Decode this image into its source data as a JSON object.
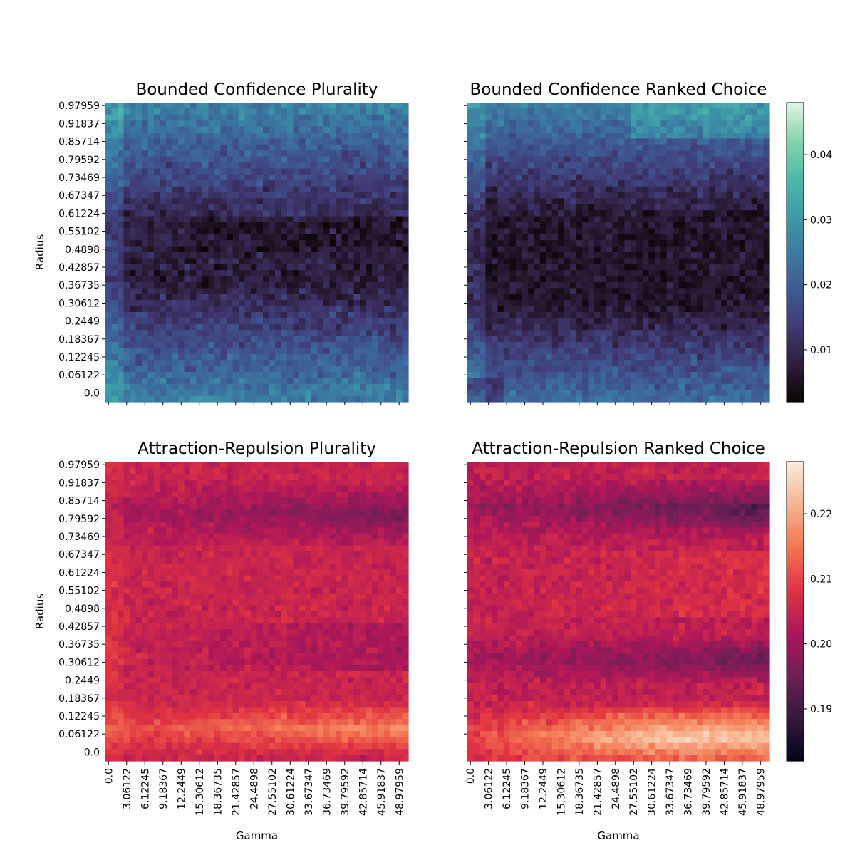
{
  "chart_data": [
    {
      "type": "heatmap",
      "title": "Bounded Confidence Plurality",
      "xlabel": "",
      "ylabel": "Radius",
      "colormap": "mako",
      "colorbar_group": "bounded",
      "pattern": "bc_plurality"
    },
    {
      "type": "heatmap",
      "title": "Bounded Confidence Ranked Choice",
      "xlabel": "",
      "ylabel": "",
      "colormap": "mako",
      "colorbar_group": "bounded",
      "pattern": "bc_ranked"
    },
    {
      "type": "heatmap",
      "title": "Attraction-Repulsion Plurality",
      "xlabel": "Gamma",
      "ylabel": "Radius",
      "colormap": "rocket",
      "colorbar_group": "attraction",
      "pattern": "ar_plurality"
    },
    {
      "type": "heatmap",
      "title": "Attraction-Repulsion Ranked Choice",
      "xlabel": "Gamma",
      "ylabel": "",
      "colormap": "rocket",
      "colorbar_group": "attraction",
      "pattern": "ar_ranked"
    }
  ],
  "grid": {
    "rows": 50,
    "cols": 50
  },
  "y_tick_labels": [
    "0.97959",
    "0.91837",
    "0.85714",
    "0.79592",
    "0.73469",
    "0.67347",
    "0.61224",
    "0.55102",
    "0.4898",
    "0.42857",
    "0.36735",
    "0.30612",
    "0.2449",
    "0.18367",
    "0.12245",
    "0.06122",
    "0.0"
  ],
  "x_tick_labels": [
    "0.0",
    "3.06122",
    "6.12245",
    "9.18367",
    "12.2449",
    "15.30612",
    "18.36735",
    "21.42857",
    "24.4898",
    "27.55102",
    "30.61224",
    "33.67347",
    "36.73469",
    "39.79592",
    "42.85714",
    "45.91837",
    "48.97959"
  ],
  "colorbars": {
    "bounded": {
      "vmin": 0.002,
      "vmax": 0.048,
      "ticks": [
        0.01,
        0.02,
        0.03,
        0.04
      ],
      "tick_labels": [
        "0.01",
        "0.02",
        "0.03",
        "0.04"
      ]
    },
    "attraction": {
      "vmin": 0.182,
      "vmax": 0.228,
      "ticks": [
        0.19,
        0.2,
        0.21,
        0.22
      ],
      "tick_labels": [
        "0.19",
        "0.20",
        "0.21",
        "0.22"
      ]
    }
  },
  "colors": {
    "mako": [
      "#0b0405",
      "#2e1e3c",
      "#403a75",
      "#3e5a93",
      "#3b7ba3",
      "#3e9ba9",
      "#4dbaa7",
      "#85d4ad",
      "#def5e5"
    ],
    "rocket": [
      "#03051a",
      "#35193e",
      "#701f57",
      "#ad1759",
      "#e13342",
      "#f37651",
      "#f6b48f",
      "#faebdd"
    ]
  }
}
